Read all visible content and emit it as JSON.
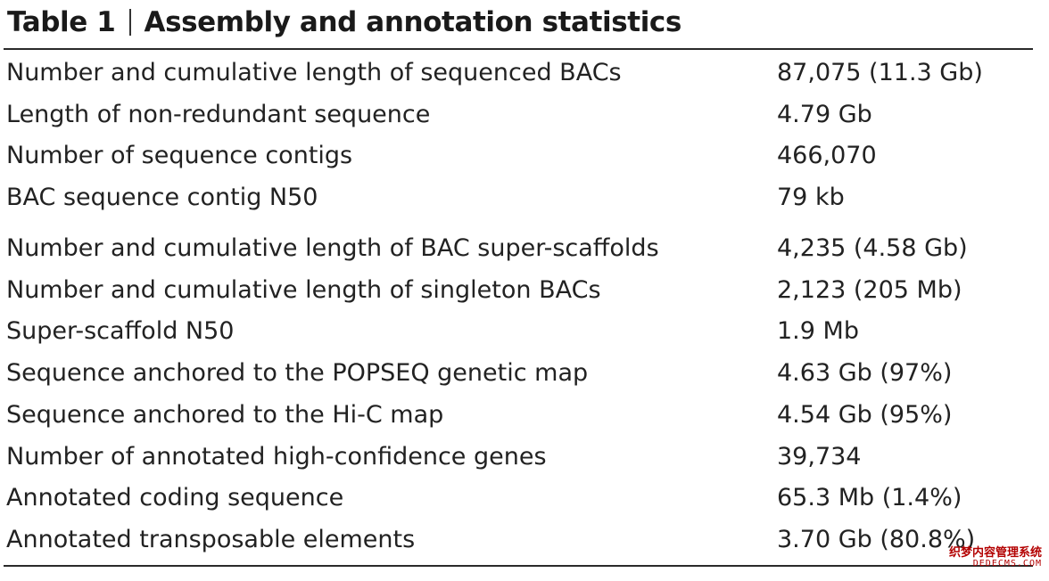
{
  "table": {
    "number": "Table 1",
    "title": "Assembly and annotation statistics",
    "rows": [
      {
        "label": "Number and cumulative length of sequenced BACs",
        "value": "87,075 (11.3 Gb)"
      },
      {
        "label": "Length of non-redundant sequence",
        "value": "4.79 Gb"
      },
      {
        "label": "Number of sequence contigs",
        "value": "466,070"
      },
      {
        "label": "BAC sequence contig N50",
        "value": "79 kb"
      },
      {
        "label": "Number and cumulative length of BAC super-scaffolds",
        "value": "4,235 (4.58 Gb)"
      },
      {
        "label": "Number and cumulative length of singleton BACs",
        "value": "2,123 (205 Mb)"
      },
      {
        "label": "Super-scaffold N50",
        "value": "1.9 Mb"
      },
      {
        "label": "Sequence anchored to the POPSEQ genetic map",
        "value": "4.63 Gb (97%)"
      },
      {
        "label": "Sequence anchored to the Hi-C map",
        "value": "4.54 Gb (95%)"
      },
      {
        "label": "Number of annotated high-confidence genes",
        "value": "39,734"
      },
      {
        "label": "Annotated coding sequence",
        "value": "65.3 Mb (1.4%)"
      },
      {
        "label": "Annotated transposable elements",
        "value": "3.70 Gb (80.8%)"
      }
    ]
  },
  "watermark": {
    "line1": "织梦内容管理系统",
    "line2": "DEDECMS.COM"
  }
}
